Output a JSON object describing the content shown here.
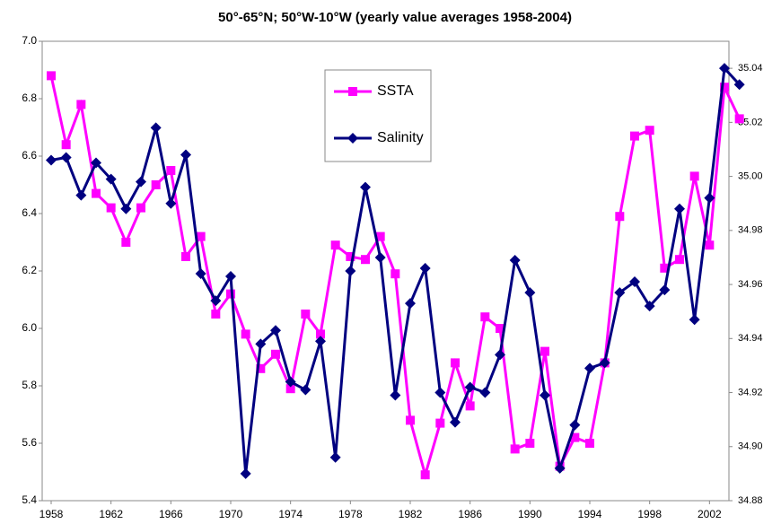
{
  "chart_data": {
    "type": "line",
    "title": "50°-65°N; 50°W-10°W (yearly value averages 1958-2004)",
    "x": [
      1958,
      1959,
      1960,
      1961,
      1962,
      1963,
      1964,
      1965,
      1966,
      1967,
      1968,
      1969,
      1970,
      1971,
      1972,
      1973,
      1974,
      1975,
      1976,
      1977,
      1978,
      1979,
      1980,
      1981,
      1982,
      1983,
      1984,
      1985,
      1986,
      1987,
      1988,
      1989,
      1990,
      1991,
      1992,
      1993,
      1994,
      1995,
      1996,
      1997,
      1998,
      1999,
      2000,
      2001,
      2002,
      2003,
      2004
    ],
    "series": [
      {
        "name": "SSTA",
        "color": "#ff00ff",
        "marker": "square",
        "values": [
          6.88,
          6.64,
          6.78,
          6.47,
          6.42,
          6.3,
          6.42,
          6.5,
          6.55,
          6.25,
          6.32,
          6.05,
          6.12,
          5.98,
          5.86,
          5.91,
          5.79,
          6.05,
          5.98,
          6.29,
          6.25,
          6.24,
          6.32,
          6.19,
          5.68,
          5.49,
          5.67,
          5.88,
          5.73,
          6.04,
          6.0,
          5.58,
          5.6,
          5.92,
          5.52,
          5.62,
          5.6,
          5.88,
          6.39,
          6.67,
          6.69,
          6.21,
          6.24,
          6.53,
          6.29,
          6.84,
          6.73
        ]
      },
      {
        "name": "Salinity",
        "color": "#000080",
        "marker": "diamond",
        "axis": "y2",
        "values": [
          35.006,
          35.007,
          34.993,
          35.005,
          34.999,
          34.988,
          34.998,
          35.018,
          34.99,
          35.008,
          34.964,
          34.954,
          34.963,
          34.89,
          34.938,
          34.943,
          34.924,
          34.921,
          34.939,
          34.896,
          34.965,
          34.996,
          34.97,
          34.919,
          34.953,
          34.966,
          34.92,
          34.909,
          34.922,
          34.92,
          34.934,
          34.969,
          34.957,
          34.919,
          34.892,
          34.908,
          34.929,
          34.931,
          34.957,
          34.961,
          34.952,
          34.958,
          34.988,
          34.947,
          34.992,
          35.04,
          35.034
        ]
      }
    ],
    "xlim": [
      1957.4,
      2003.3
    ],
    "xticks": [
      1958,
      1962,
      1966,
      1970,
      1974,
      1978,
      1982,
      1986,
      1990,
      1994,
      1998,
      2002
    ],
    "ylim": [
      5.4,
      7.0
    ],
    "yticks": [
      5.4,
      5.6,
      5.8,
      {
        "value": 6.0,
        "label": "6.0"
      },
      6.2,
      6.4,
      6.6,
      6.8,
      {
        "value": 7.0,
        "label": "7.0"
      }
    ],
    "y2lim": [
      34.88,
      35.05
    ],
    "y2ticks": [
      34.88,
      {
        "value": 34.9,
        "label": "34.90"
      },
      34.92,
      34.94,
      34.96,
      34.98,
      {
        "value": 35.0,
        "label": "35.00"
      },
      35.02,
      35.04
    ],
    "legend": "top-center"
  }
}
